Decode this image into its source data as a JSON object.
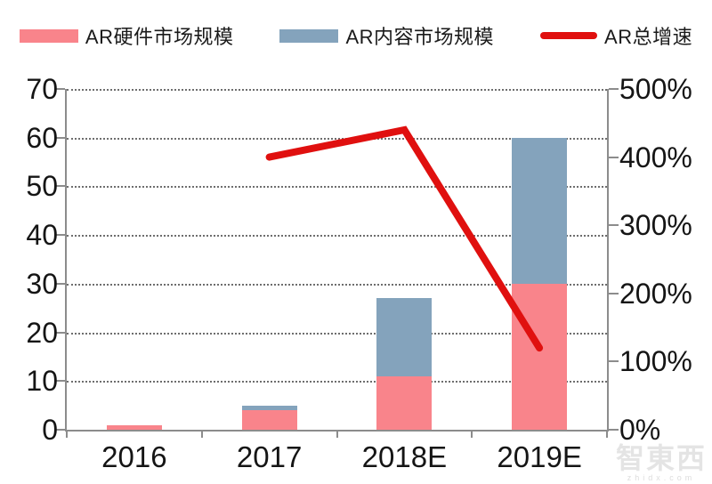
{
  "legend": {
    "items": [
      {
        "label": "AR硬件市场规模",
        "swatch": "bar",
        "color": "#f9848b"
      },
      {
        "label": "AR内容市场规模",
        "swatch": "bar",
        "color": "#84a3bc"
      },
      {
        "label": "AR总增速",
        "swatch": "line",
        "color": "#e0100f"
      }
    ]
  },
  "watermark": {
    "logo": "智東西",
    "domain": "zhidx.com"
  },
  "chart_data": {
    "type": "bar",
    "subtype": "stacked-bar-with-line",
    "categories": [
      "2016",
      "2017",
      "2018E",
      "2019E"
    ],
    "series": [
      {
        "name": "AR硬件市场规模",
        "type": "bar",
        "axis": "left",
        "color": "#f9848b",
        "values": [
          1,
          4,
          11,
          30
        ]
      },
      {
        "name": "AR内容市场规模",
        "type": "bar",
        "axis": "left",
        "color": "#84a3bc",
        "values": [
          0,
          1,
          16,
          30
        ]
      },
      {
        "name": "AR总增速",
        "type": "line",
        "axis": "right",
        "color": "#e0100f",
        "values": [
          null,
          400,
          440,
          120
        ]
      }
    ],
    "title": "",
    "xlabel": "",
    "ylabel": "",
    "left_axis": {
      "min": 0,
      "max": 70,
      "step": 10,
      "tick_labels": [
        "0",
        "10",
        "20",
        "30",
        "40",
        "50",
        "60",
        "70"
      ]
    },
    "right_axis": {
      "min": 0,
      "max": 500,
      "step": 100,
      "tick_labels": [
        "0%",
        "100%",
        "200%",
        "300%",
        "400%",
        "500%"
      ]
    },
    "grid": "horizontal-dotted",
    "legend_position": "top"
  }
}
